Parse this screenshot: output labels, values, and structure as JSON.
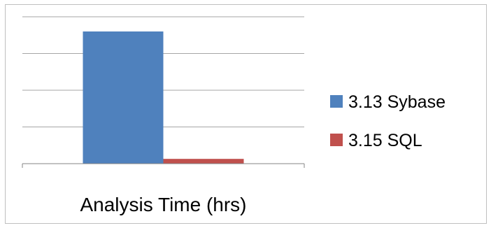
{
  "chart_data": {
    "type": "bar",
    "categories": [
      "Analysis Time (hrs)"
    ],
    "series": [
      {
        "name": "3.13 Sybase",
        "values": [
          3.6
        ],
        "color": "#4f81bd"
      },
      {
        "name": "3.15 SQL",
        "values": [
          0.13
        ],
        "color": "#c0504d"
      }
    ],
    "title": "",
    "xlabel": "",
    "ylabel": "",
    "ylim": [
      0,
      4
    ],
    "grid": true,
    "legend": "right"
  }
}
